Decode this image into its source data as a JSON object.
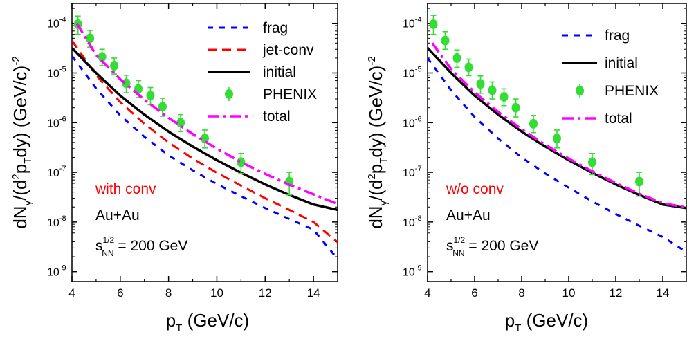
{
  "chart_data": [
    {
      "type": "line",
      "xlabel": "p",
      "xlabel_sub": "T",
      "xlabel_unit": " (GeV/c)",
      "ylabel": "dN",
      "ylabel_sub1": "γ",
      "ylabel_mid": "/(d",
      "ylabel_sup": "2",
      "ylabel_p": "p",
      "ylabel_sub2": "T",
      "ylabel_tail": "dy)  (GeV/c)",
      "ylabel_sup2": "-2",
      "xlim": [
        4,
        15
      ],
      "ylim_log10": [
        -9.2,
        -3.6
      ],
      "x_ticks": [
        "4",
        "6",
        "8",
        "10",
        "12",
        "14"
      ],
      "y_ticks": [
        {
          "exp": -9,
          "base": "10",
          "sup": "-9"
        },
        {
          "exp": -8,
          "base": "10",
          "sup": "-8"
        },
        {
          "exp": -7,
          "base": "10",
          "sup": "-7"
        },
        {
          "exp": -6,
          "base": "10",
          "sup": "-6"
        },
        {
          "exp": -5,
          "base": "10",
          "sup": "-5"
        },
        {
          "exp": -4,
          "base": "10",
          "sup": "-4"
        }
      ],
      "annotation": {
        "text": "with conv",
        "color": "#ff0000"
      },
      "system": "Au+Au",
      "energy": {
        "s": "s",
        "sup": "1/2",
        "sub": "NN",
        "rest": " = 200 GeV"
      },
      "legend_position": "top-right",
      "series": [
        {
          "name": "frag",
          "style": "short-dash",
          "color": "#0000ff",
          "width": 3,
          "x": [
            4,
            5,
            6,
            7,
            8,
            9,
            10,
            11,
            12,
            13,
            14,
            15
          ],
          "y": [
            2.2e-05,
            4.9e-06,
            1.4e-06,
            5.2e-07,
            2.2e-07,
            1.1e-07,
            5.8e-08,
            3.3e-08,
            1.9e-08,
            1.15e-08,
            7e-09,
            1.8e-09
          ]
        },
        {
          "name": "jet-conv",
          "style": "dash",
          "color": "#ff0000",
          "width": 3,
          "x": [
            4,
            5,
            6,
            7,
            8,
            9,
            10,
            11,
            12,
            13,
            14,
            15
          ],
          "y": [
            4.5e-05,
            9e-06,
            2.6e-06,
            9.5e-07,
            4e-07,
            1.9e-07,
            9.8e-08,
            5.4e-08,
            3e-08,
            1.75e-08,
            1e-08,
            3.9e-09
          ]
        },
        {
          "name": "initial",
          "style": "solid",
          "color": "#000000",
          "width": 3.5,
          "x": [
            4,
            5,
            6,
            7,
            8,
            9,
            10,
            11,
            12,
            13,
            14,
            15
          ],
          "y": [
            3.2e-05,
            1e-05,
            3.5e-06,
            1.45e-06,
            6.6e-07,
            3.3e-07,
            1.75e-07,
            9.8e-08,
            5.7e-08,
            3.5e-08,
            2.25e-08,
            1.75e-08
          ]
        },
        {
          "name": "PHENIX",
          "style": "points",
          "color": "#33dd33",
          "x": [
            4.25,
            4.75,
            5.25,
            5.75,
            6.25,
            6.75,
            7.25,
            7.75,
            8.5,
            9.5,
            11,
            13
          ],
          "y": [
            9.6e-05,
            5e-05,
            2.1e-05,
            1.4e-05,
            6.2e-06,
            4.8e-06,
            3.5e-06,
            2.1e-06,
            1e-06,
            4.8e-07,
            1.6e-07,
            6.5e-08
          ],
          "err_lo": [
            6e-05,
            3.3e-05,
            1.4e-05,
            9.5e-06,
            4e-06,
            3.2e-06,
            2.3e-06,
            1.35e-06,
            6.6e-07,
            3.1e-07,
            9.5e-08,
            3.5e-08
          ],
          "err_hi": [
            0.00014,
            7.2e-05,
            3e-05,
            2e-05,
            9e-06,
            7e-06,
            5.1e-06,
            3.1e-06,
            1.45e-06,
            7.1e-07,
            2.4e-07,
            1e-07
          ]
        },
        {
          "name": "total",
          "style": "dash-dot",
          "color": "#ff00ff",
          "width": 3.5,
          "x": [
            4.2,
            5,
            6,
            7,
            8,
            9,
            10,
            11,
            12,
            13,
            14,
            15
          ],
          "y": [
            0.0001,
            2.3e-05,
            7.5e-06,
            2.9e-06,
            1.25e-06,
            5.9e-07,
            3e-07,
            1.6e-07,
            9.3e-08,
            5.6e-08,
            3.6e-08,
            2.3e-08
          ]
        }
      ],
      "legend": [
        "frag",
        "jet-conv",
        "initial",
        "PHENIX",
        "total"
      ]
    },
    {
      "type": "line",
      "xlabel": "p",
      "xlabel_sub": "T",
      "xlabel_unit": " (GeV/c)",
      "ylabel": "dN",
      "ylabel_sub1": "γ",
      "ylabel_mid": "/(d",
      "ylabel_sup": "2",
      "ylabel_p": "p",
      "ylabel_sub2": "T",
      "ylabel_tail": "dy)  (GeV/c)",
      "ylabel_sup2": "-2",
      "xlim": [
        4,
        15
      ],
      "ylim_log10": [
        -9.2,
        -3.6
      ],
      "x_ticks": [
        "4",
        "6",
        "8",
        "10",
        "12",
        "14"
      ],
      "y_ticks": [
        {
          "exp": -9,
          "base": "10",
          "sup": "-9"
        },
        {
          "exp": -8,
          "base": "10",
          "sup": "-8"
        },
        {
          "exp": -7,
          "base": "10",
          "sup": "-7"
        },
        {
          "exp": -6,
          "base": "10",
          "sup": "-6"
        },
        {
          "exp": -5,
          "base": "10",
          "sup": "-5"
        },
        {
          "exp": -4,
          "base": "10",
          "sup": "-4"
        }
      ],
      "annotation": {
        "text": "w/o conv",
        "color": "#ff0000"
      },
      "system": "Au+Au",
      "energy": {
        "s": "s",
        "sup": "1/2",
        "sub": "NN",
        "rest": " = 200 GeV"
      },
      "legend_position": "top-right",
      "series": [
        {
          "name": "frag",
          "style": "short-dash",
          "color": "#0000ff",
          "width": 3,
          "x": [
            4,
            5,
            6,
            7,
            8,
            9,
            10,
            11,
            12,
            13,
            14,
            15
          ],
          "y": [
            2e-05,
            4.5e-06,
            1.3e-06,
            4.8e-07,
            2e-07,
            9.5e-08,
            4.9e-08,
            2.6e-08,
            1.45e-08,
            8.4e-09,
            5e-09,
            2.5e-09
          ]
        },
        {
          "name": "initial",
          "style": "solid",
          "color": "#000000",
          "width": 3.5,
          "x": [
            4,
            5,
            6,
            7,
            8,
            9,
            10,
            11,
            12,
            13,
            14,
            15
          ],
          "y": [
            3.2e-05,
            1e-05,
            3.5e-06,
            1.45e-06,
            6.6e-07,
            3.3e-07,
            1.75e-07,
            9.8e-08,
            5.7e-08,
            3.5e-08,
            2.25e-08,
            1.9e-08
          ]
        },
        {
          "name": "PHENIX",
          "style": "points",
          "color": "#33dd33",
          "x": [
            4.25,
            4.75,
            5.25,
            5.75,
            6.25,
            6.75,
            7.25,
            7.75,
            8.5,
            9.5,
            11,
            13
          ],
          "y": [
            9.6e-05,
            4.5e-05,
            2e-05,
            1.3e-05,
            6e-06,
            4.5e-06,
            3.3e-06,
            2e-06,
            9.5e-07,
            4.8e-07,
            1.6e-07,
            6.5e-08
          ],
          "err_lo": [
            6e-05,
            3e-05,
            1.3e-05,
            8.8e-06,
            3.9e-06,
            3e-06,
            2.2e-06,
            1.3e-06,
            6.3e-07,
            3.1e-07,
            9e-08,
            3.3e-08
          ],
          "err_hi": [
            0.000145,
            6.8e-05,
            2.9e-05,
            1.9e-05,
            8.7e-06,
            6.6e-06,
            4.8e-06,
            3e-06,
            1.4e-06,
            7.1e-07,
            2.4e-07,
            1e-07
          ]
        },
        {
          "name": "total",
          "style": "dash-dot",
          "color": "#ff00ff",
          "width": 3.5,
          "x": [
            4.2,
            5,
            6,
            7,
            8,
            9,
            10,
            11,
            12,
            13,
            14,
            15
          ],
          "y": [
            4e-05,
            1.2e-05,
            4.1e-06,
            1.65e-06,
            7.4e-07,
            3.6e-07,
            1.9e-07,
            1.05e-07,
            6.1e-08,
            3.7e-08,
            2.4e-08,
            1.95e-08
          ]
        }
      ],
      "legend": [
        "frag",
        "initial",
        "PHENIX",
        "total"
      ]
    }
  ]
}
